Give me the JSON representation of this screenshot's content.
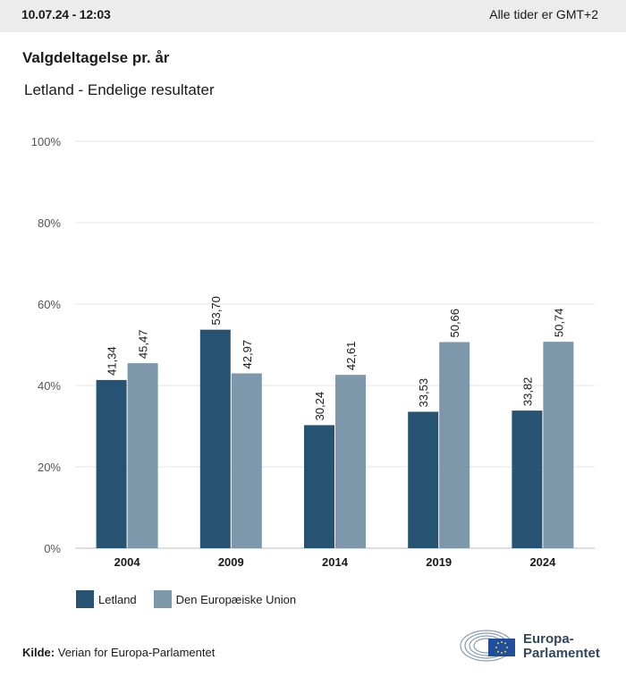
{
  "header": {
    "timestamp": "10.07.24 - 12:03",
    "timezone": "Alle tider er GMT+2"
  },
  "title": "Valgdeltagelse pr. år",
  "subtitle": "Letland - Endelige resultater",
  "source": {
    "label": "Kilde:",
    "text": "Verian for Europa-Parlamentet"
  },
  "logo": {
    "line1": "Europa-",
    "line2": "Parlamentet"
  },
  "colors": {
    "letland": "#275372",
    "eu": "#7d98ab",
    "grid": "#e6e6e6",
    "axis": "#bdbdbd"
  },
  "chart_data": {
    "type": "bar",
    "categories": [
      "2004",
      "2009",
      "2014",
      "2019",
      "2024"
    ],
    "series": [
      {
        "name": "Letland",
        "values": [
          41.34,
          53.7,
          30.24,
          33.53,
          33.82
        ],
        "labels": [
          "41,34",
          "53,70",
          "30,24",
          "33,53",
          "33,82"
        ]
      },
      {
        "name": "Den Europæiske Union",
        "values": [
          45.47,
          42.97,
          42.61,
          50.66,
          50.74
        ],
        "labels": [
          "45,47",
          "42,97",
          "42,61",
          "50,66",
          "50,74"
        ]
      }
    ],
    "ylim": [
      0,
      100
    ],
    "yticks": [
      "0%",
      "20%",
      "40%",
      "60%",
      "80%",
      "100%"
    ],
    "grid": true,
    "legend": "bottom-left"
  }
}
